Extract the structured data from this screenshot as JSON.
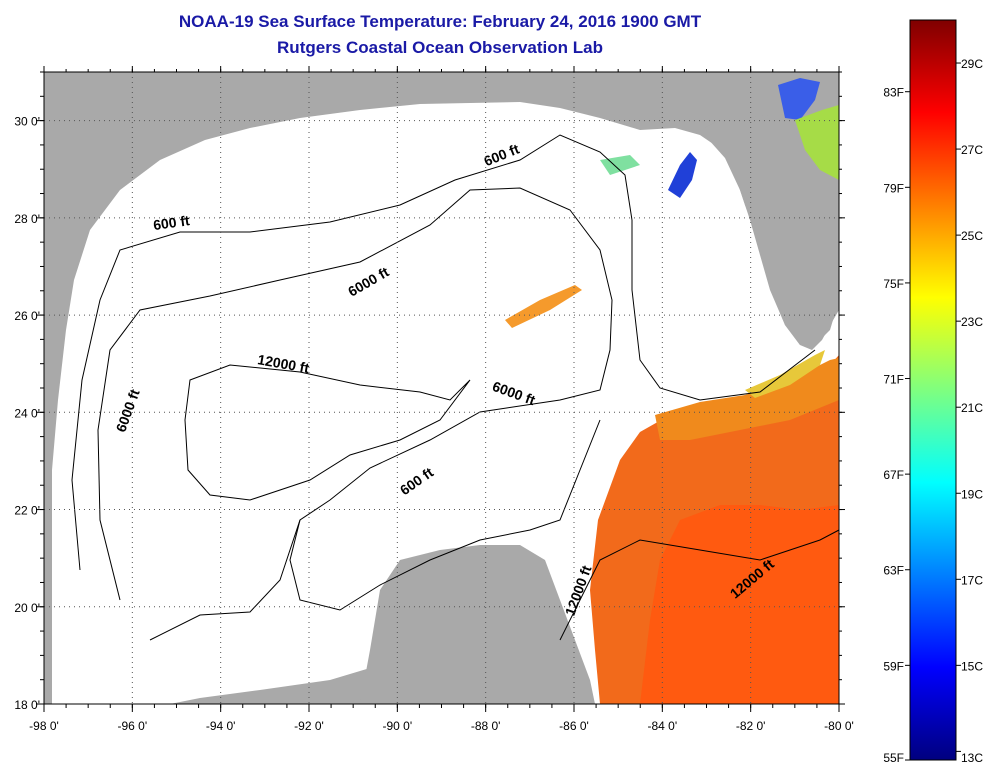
{
  "title": "NOAA-19 Sea Surface Temperature:  February 24, 2016 1900 GMT",
  "subtitle": "Rutgers Coastal Ocean Observation Lab",
  "map": {
    "lon_range": [
      -98,
      -80
    ],
    "lat_range": [
      18,
      31
    ],
    "lon_ticks": [
      "-98 0'",
      "-96 0'",
      "-94 0'",
      "-92 0'",
      "-90 0'",
      "-88 0'",
      "-86 0'",
      "-84 0'",
      "-82 0'",
      "-80 0'"
    ],
    "lat_ticks": [
      "18 0'",
      "20 0'",
      "22 0'",
      "24 0'",
      "26 0'",
      "28 0'",
      "30 0'"
    ],
    "colors": {
      "land": "#a9a9a9",
      "ocean": "#ffffff",
      "warm_water": "#f26a1b",
      "cool_water": "#2050e0"
    },
    "contour_labels": [
      {
        "text": "600 ft",
        "lon": -87.6,
        "lat": 29.2,
        "rot": -22
      },
      {
        "text": "600 ft",
        "lon": -95.1,
        "lat": 27.8,
        "rot": -8
      },
      {
        "text": "6000 ft",
        "lon": -90.6,
        "lat": 26.6,
        "rot": -30
      },
      {
        "text": "6000 ft",
        "lon": -96.0,
        "lat": 24.0,
        "rot": -70
      },
      {
        "text": "12000 ft",
        "lon": -92.6,
        "lat": 24.9,
        "rot": 10
      },
      {
        "text": "6000 ft",
        "lon": -87.4,
        "lat": 24.3,
        "rot": 20
      },
      {
        "text": "600 ft",
        "lon": -89.5,
        "lat": 22.5,
        "rot": -35
      },
      {
        "text": "12000 ft",
        "lon": -85.8,
        "lat": 20.3,
        "rot": -70
      },
      {
        "text": "12000 ft",
        "lon": -81.9,
        "lat": 20.5,
        "rot": -40
      }
    ]
  },
  "colorbar": {
    "c_labels": [
      "29C",
      "27C",
      "25C",
      "23C",
      "21C",
      "19C",
      "17C",
      "15C",
      "13C"
    ],
    "c_values": [
      29,
      27,
      25,
      23,
      21,
      19,
      17,
      15,
      13
    ],
    "f_labels": [
      "83F",
      "79F",
      "75F",
      "71F",
      "67F",
      "63F",
      "59F",
      "55F"
    ],
    "f_values": [
      83,
      79,
      75,
      71,
      67,
      63,
      59,
      55
    ],
    "c_range": [
      12.8,
      30.0
    ],
    "stops": [
      "#00007f",
      "#0000ff",
      "#007fff",
      "#00ffff",
      "#7fff7f",
      "#ffff00",
      "#ff7f00",
      "#ff0000",
      "#7f0000"
    ]
  }
}
